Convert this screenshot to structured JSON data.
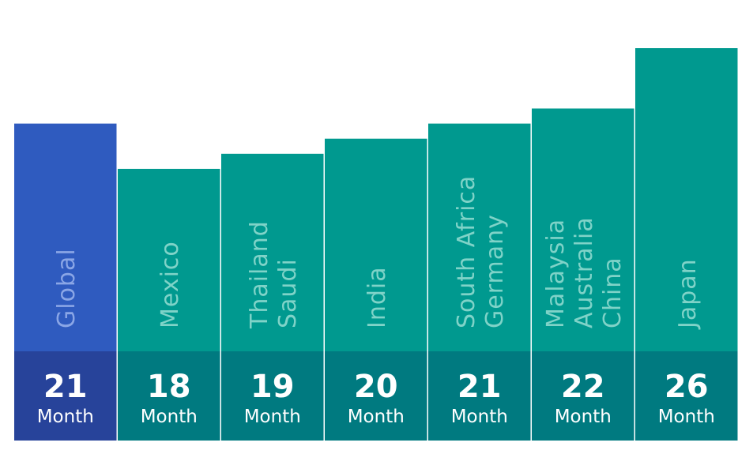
{
  "chart_data": {
    "type": "bar",
    "categories": [
      [
        "Global"
      ],
      [
        "Mexico"
      ],
      [
        "Thailand",
        "Saudi"
      ],
      [
        "India"
      ],
      [
        "South Africa",
        "Germany"
      ],
      [
        "Malaysia",
        "Australia",
        "China"
      ],
      [
        "Japan"
      ]
    ],
    "values": [
      21,
      18,
      19,
      20,
      21,
      22,
      26
    ],
    "value_labels": [
      "21",
      "18",
      "19",
      "20",
      "21",
      "22",
      "26"
    ],
    "unit_label": "Month",
    "title": "",
    "xlabel": "",
    "ylabel": "",
    "ylim": [
      0,
      26
    ],
    "grid": false,
    "highlight_category": "Global",
    "colors": {
      "highlight_bar": "#2f5bbf",
      "highlight_band": "#27439a",
      "bar": "#00998f",
      "band": "#007a80",
      "category_text_highlight": "#8aa6e6",
      "category_text": "#7fd3c8",
      "band_text": "#ffffff"
    }
  }
}
